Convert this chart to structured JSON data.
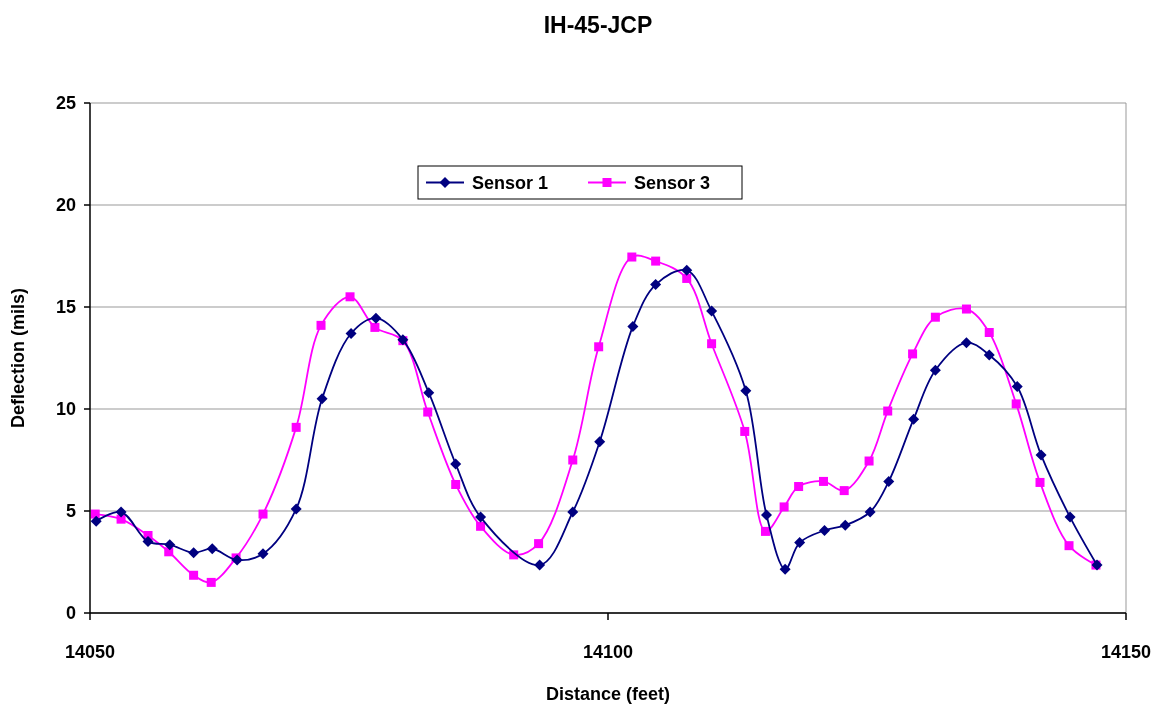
{
  "chart_data": {
    "type": "line",
    "title": "IH-45-JCP",
    "xlabel": "Distance (feet)",
    "ylabel": "Deflection (mils)",
    "xlim": [
      14050,
      14150
    ],
    "xticks": [
      14050,
      14100,
      14150
    ],
    "ylim": [
      0,
      25
    ],
    "yticks": [
      0,
      5,
      10,
      15,
      20,
      25
    ],
    "grid": "y",
    "legend": "top",
    "series": [
      {
        "name": "Sensor 1",
        "color": "#000080",
        "marker": "diamond",
        "x": [
          14050.6,
          14053.0,
          14055.6,
          14057.7,
          14060.0,
          14061.8,
          14064.2,
          14066.7,
          14069.9,
          14072.4,
          14075.2,
          14077.6,
          14080.2,
          14082.7,
          14085.3,
          14087.7,
          14090.9,
          14093.4,
          14096.6,
          14099.2,
          14102.4,
          14104.6,
          14107.6,
          14110.0,
          14113.3,
          14115.3,
          14117.1,
          14118.5,
          14120.9,
          14122.9,
          14125.3,
          14127.1,
          14129.5,
          14131.6,
          14134.6,
          14136.8,
          14139.5,
          14141.8,
          14144.6,
          14147.2
        ],
        "values": [
          4.5,
          4.95,
          3.5,
          3.35,
          2.95,
          3.15,
          2.6,
          2.9,
          5.1,
          10.5,
          13.7,
          14.45,
          13.4,
          10.8,
          7.3,
          4.7,
          null,
          2.35,
          4.95,
          8.4,
          14.05,
          16.1,
          16.8,
          14.8,
          10.9,
          4.8,
          2.15,
          3.45,
          4.05,
          4.3,
          4.95,
          6.45,
          9.5,
          11.9,
          13.25,
          12.65,
          11.1,
          7.75,
          4.7,
          2.35
        ]
      },
      {
        "name": "Sensor 3",
        "color": "#ff00ff",
        "marker": "square",
        "x": [
          14050.5,
          14053.0,
          14055.6,
          14057.6,
          14060.0,
          14061.7,
          14064.1,
          14066.7,
          14069.9,
          14072.3,
          14075.1,
          14077.5,
          14080.2,
          14082.6,
          14085.3,
          14087.7,
          14090.9,
          14093.3,
          14096.6,
          14099.1,
          14102.3,
          14104.6,
          14107.6,
          14110.0,
          14113.2,
          14115.2,
          14117.0,
          14118.4,
          14120.8,
          14122.8,
          14125.2,
          14127.0,
          14129.4,
          14131.6,
          14134.6,
          14136.8,
          14139.4,
          14141.7,
          14144.5,
          14147.1
        ],
        "values": [
          4.85,
          4.6,
          3.8,
          3.0,
          1.85,
          1.5,
          2.7,
          4.85,
          9.1,
          14.1,
          15.5,
          14.0,
          13.35,
          9.85,
          6.3,
          4.25,
          2.85,
          3.4,
          7.5,
          13.05,
          17.45,
          17.25,
          16.4,
          13.2,
          8.9,
          4.0,
          5.2,
          6.2,
          6.45,
          6.0,
          7.45,
          9.9,
          12.7,
          14.5,
          14.9,
          13.75,
          10.25,
          6.4,
          3.3,
          2.35
        ]
      }
    ]
  }
}
